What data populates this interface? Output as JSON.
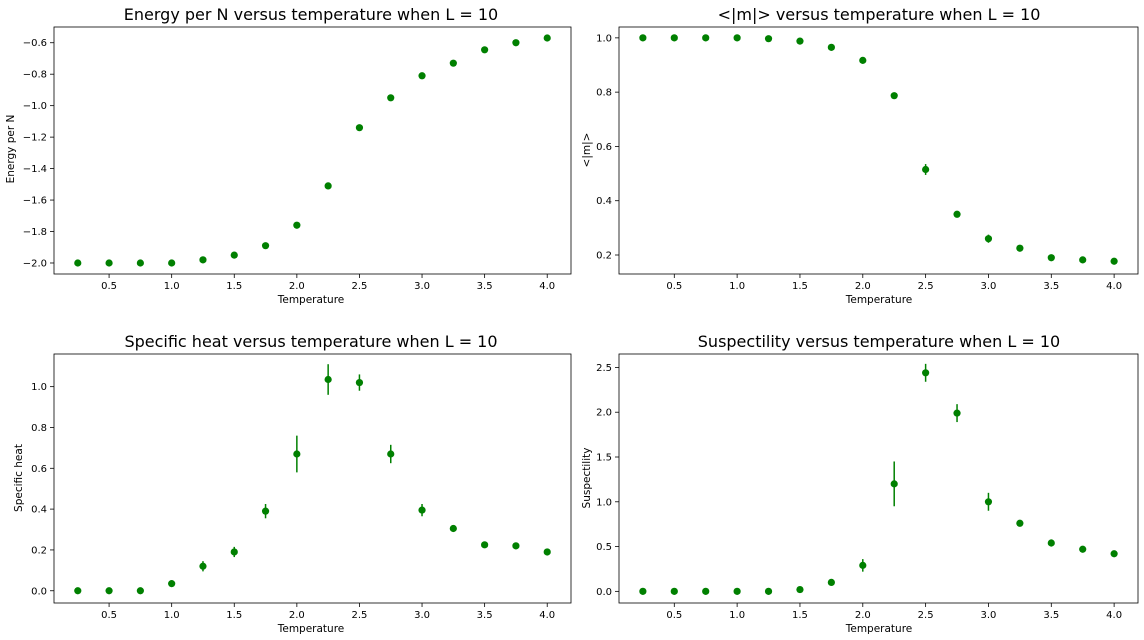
{
  "figure": {
    "background": "#ffffff",
    "marker_color": "#008000",
    "error_color": "#008000"
  },
  "chart_data": [
    {
      "type": "scatter",
      "title": "Energy per N versus temperature when L = 10",
      "xlabel": "Temperature",
      "ylabel": "Energy per N",
      "xlim": [
        0.06,
        4.19
      ],
      "ylim": [
        -2.07,
        -0.5
      ],
      "xticks": [
        0.5,
        1.0,
        1.5,
        2.0,
        2.5,
        3.0,
        3.5,
        4.0
      ],
      "xtick_labels": [
        "0.5",
        "1.0",
        "1.5",
        "2.0",
        "2.5",
        "3.0",
        "3.5",
        "4.0"
      ],
      "yticks": [
        -2.0,
        -1.8,
        -1.6,
        -1.4,
        -1.2,
        -1.0,
        -0.8,
        -0.6
      ],
      "ytick_labels": [
        "−2.0",
        "−1.8",
        "−1.6",
        "−1.4",
        "−1.2",
        "−1.0",
        "−0.8",
        "−0.6"
      ],
      "x": [
        0.25,
        0.5,
        0.75,
        1.0,
        1.25,
        1.5,
        1.75,
        2.0,
        2.25,
        2.5,
        2.75,
        3.0,
        3.25,
        3.5,
        3.75,
        4.0
      ],
      "y": [
        -2.0,
        -2.0,
        -2.0,
        -2.0,
        -1.98,
        -1.95,
        -1.89,
        -1.76,
        -1.51,
        -1.14,
        -0.95,
        -0.81,
        -0.73,
        -0.645,
        -0.6,
        -0.57
      ],
      "yerr": [
        0,
        0,
        0,
        0,
        0.003,
        0.005,
        0.007,
        0.01,
        0.012,
        0.015,
        0.01,
        0.008,
        0.006,
        0.005,
        0.004,
        0.004
      ],
      "grid": false,
      "legend": false
    },
    {
      "type": "scatter",
      "title": "<|m|> versus temperature when L = 10",
      "xlabel": "Temperature",
      "ylabel": "<|m|>",
      "xlim": [
        0.06,
        4.19
      ],
      "ylim": [
        0.13,
        1.04
      ],
      "xticks": [
        0.5,
        1.0,
        1.5,
        2.0,
        2.5,
        3.0,
        3.5,
        4.0
      ],
      "xtick_labels": [
        "0.5",
        "1.0",
        "1.5",
        "2.0",
        "2.5",
        "3.0",
        "3.5",
        "4.0"
      ],
      "yticks": [
        0.2,
        0.4,
        0.6,
        0.8,
        1.0
      ],
      "ytick_labels": [
        "0.2",
        "0.4",
        "0.6",
        "0.8",
        "1.0"
      ],
      "x": [
        0.25,
        0.5,
        0.75,
        1.0,
        1.25,
        1.5,
        1.75,
        2.0,
        2.25,
        2.5,
        2.75,
        3.0,
        3.25,
        3.5,
        3.75,
        4.0
      ],
      "y": [
        1.0,
        1.0,
        1.0,
        1.0,
        0.997,
        0.988,
        0.965,
        0.917,
        0.787,
        0.515,
        0.35,
        0.26,
        0.225,
        0.19,
        0.182,
        0.177
      ],
      "yerr": [
        0,
        0,
        0,
        0,
        0.002,
        0.003,
        0.005,
        0.007,
        0.012,
        0.02,
        0.01,
        0.015,
        0.008,
        0.006,
        0.005,
        0.005
      ],
      "grid": false,
      "legend": false
    },
    {
      "type": "scatter",
      "title": "Specific heat versus temperature when L = 10",
      "xlabel": "Temperature",
      "ylabel": "Specific heat",
      "xlim": [
        0.06,
        4.19
      ],
      "ylim": [
        -0.06,
        1.16
      ],
      "xticks": [
        0.5,
        1.0,
        1.5,
        2.0,
        2.5,
        3.0,
        3.5,
        4.0
      ],
      "xtick_labels": [
        "0.5",
        "1.0",
        "1.5",
        "2.0",
        "2.5",
        "3.0",
        "3.5",
        "4.0"
      ],
      "yticks": [
        0.0,
        0.2,
        0.4,
        0.6,
        0.8,
        1.0
      ],
      "ytick_labels": [
        "0.0",
        "0.2",
        "0.4",
        "0.6",
        "0.8",
        "1.0"
      ],
      "x": [
        0.25,
        0.5,
        0.75,
        1.0,
        1.25,
        1.5,
        1.75,
        2.0,
        2.25,
        2.5,
        2.75,
        3.0,
        3.25,
        3.5,
        3.75,
        4.0
      ],
      "y": [
        0.0,
        0.0,
        0.0,
        0.035,
        0.12,
        0.19,
        0.39,
        0.67,
        1.035,
        1.02,
        0.67,
        0.395,
        0.305,
        0.225,
        0.22,
        0.19
      ],
      "yerr": [
        0,
        0,
        0,
        0.01,
        0.025,
        0.025,
        0.035,
        0.09,
        0.075,
        0.04,
        0.045,
        0.03,
        0.01,
        0.01,
        0.008,
        0.008
      ],
      "grid": false,
      "legend": false
    },
    {
      "type": "scatter",
      "title": "Suspectility versus temperature when L = 10",
      "xlabel": "Temperature",
      "ylabel": "Suspectility",
      "xlim": [
        0.06,
        4.19
      ],
      "ylim": [
        -0.13,
        2.65
      ],
      "xticks": [
        0.5,
        1.0,
        1.5,
        2.0,
        2.5,
        3.0,
        3.5,
        4.0
      ],
      "xtick_labels": [
        "0.5",
        "1.0",
        "1.5",
        "2.0",
        "2.5",
        "3.0",
        "3.5",
        "4.0"
      ],
      "yticks": [
        0.0,
        0.5,
        1.0,
        1.5,
        2.0,
        2.5
      ],
      "ytick_labels": [
        "0.0",
        "0.5",
        "1.0",
        "1.5",
        "2.0",
        "2.5"
      ],
      "x": [
        0.25,
        0.5,
        0.75,
        1.0,
        1.25,
        1.5,
        1.75,
        2.0,
        2.25,
        2.5,
        2.75,
        3.0,
        3.25,
        3.5,
        3.75,
        4.0
      ],
      "y": [
        0.0,
        0.0,
        0.0,
        0.0,
        0.0,
        0.02,
        0.1,
        0.29,
        1.2,
        2.44,
        1.99,
        1.0,
        0.76,
        0.54,
        0.47,
        0.42
      ],
      "yerr": [
        0,
        0,
        0,
        0,
        0.003,
        0.01,
        0.02,
        0.07,
        0.25,
        0.1,
        0.1,
        0.1,
        0.02,
        0.04,
        0.02,
        0.02
      ],
      "grid": false,
      "legend": false
    }
  ]
}
